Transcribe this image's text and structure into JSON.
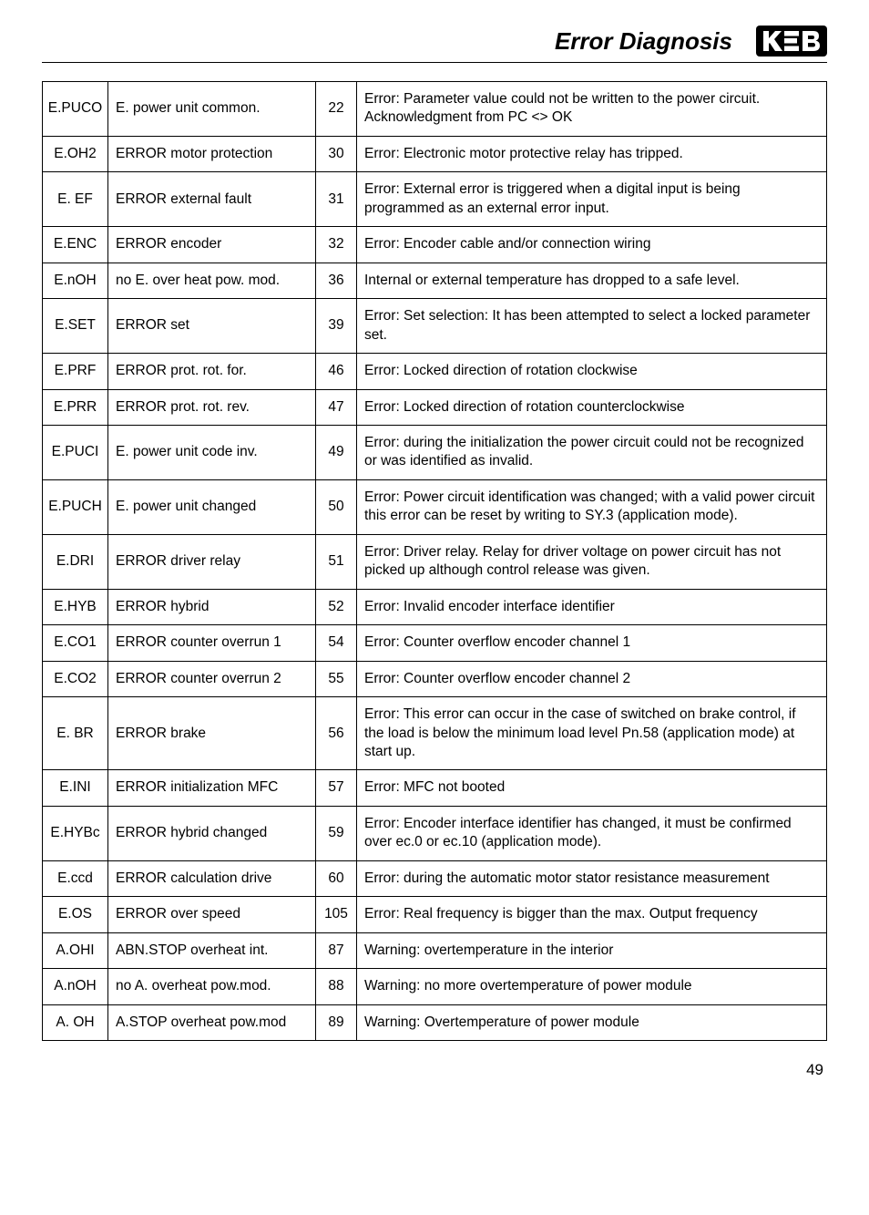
{
  "header": {
    "title": "Error Diagnosis",
    "logo_text": "KEB",
    "logo_bg": "#000000",
    "logo_fg": "#ffffff"
  },
  "page_number": "49",
  "rows": [
    {
      "code": "E.PUCO",
      "name": "E. power unit common.",
      "num": "22",
      "desc": "Error: Parameter value could not be written to the power circuit. Acknowledgment from PC <> OK"
    },
    {
      "code": "E.OH2",
      "name": "ERROR motor protection",
      "num": "30",
      "desc": "Error: Electronic motor protective relay has tripped."
    },
    {
      "code": "E. EF",
      "name": "ERROR external fault",
      "num": "31",
      "desc": "Error: External error is triggered when a digital input is being programmed as an external error input."
    },
    {
      "code": "E.ENC",
      "name": "ERROR encoder",
      "num": "32",
      "desc": "Error: Encoder cable and/or connection wiring"
    },
    {
      "code": "E.nOH",
      "name": "no E. over heat pow. mod.",
      "num": "36",
      "desc": "Internal or external  temperature has dropped to a safe level."
    },
    {
      "code": "E.SET",
      "name": "ERROR set",
      "num": "39",
      "desc": "Error: Set selection: It has been attempted to select a locked parameter set."
    },
    {
      "code": "E.PRF",
      "name": "ERROR prot. rot. for.",
      "num": "46",
      "desc": "Error: Locked direction of rotation clockwise"
    },
    {
      "code": "E.PRR",
      "name": "ERROR prot. rot. rev.",
      "num": "47",
      "desc": "Error: Locked direction of rotation counterclockwise"
    },
    {
      "code": "E.PUCI",
      "name": "E. power unit code inv.",
      "num": "49",
      "desc": "Error: during the initialization the power circuit could not be recognized or was identified as invalid."
    },
    {
      "code": "E.PUCH",
      "name": "E. power unit changed",
      "num": "50",
      "desc": "Error: Power circuit identification was changed; with a valid power circuit this error can be reset by writing to SY.3 (application mode)."
    },
    {
      "code": "E.DRI",
      "name": "ERROR driver relay",
      "num": "51",
      "desc": "Error: Driver relay. Relay for driver voltage on power circuit has not picked up although control release was given."
    },
    {
      "code": "E.HYB",
      "name": "ERROR hybrid",
      "num": "52",
      "desc": "Error: Invalid encoder interface identifier"
    },
    {
      "code": "E.CO1",
      "name": "ERROR counter overrun 1",
      "num": "54",
      "desc": "Error: Counter overflow encoder channel 1"
    },
    {
      "code": "E.CO2",
      "name": "ERROR counter overrun 2",
      "num": "55",
      "desc": "Error: Counter overflow encoder channel  2"
    },
    {
      "code": "E. BR",
      "name": "ERROR brake",
      "num": "56",
      "desc": "Error: This error can occur in the case of switched on brake control, if the load is below the minimum load level Pn.58 (application mode) at start up."
    },
    {
      "code": "E.INI",
      "name": "ERROR initialization MFC",
      "num": "57",
      "desc": "Error: MFC not booted"
    },
    {
      "code": "E.HYBc",
      "name": "ERROR hybrid changed",
      "num": "59",
      "desc": "Error: Encoder interface identifier has changed, it must be confirmed over ec.0 or ec.10 (application mode)."
    },
    {
      "code": "E.ccd",
      "name": "ERROR calculation drive",
      "num": "60",
      "desc": "Error: during the automatic motor stator resistance measurement"
    },
    {
      "code": "E.OS",
      "name": "ERROR over speed",
      "num": "105",
      "desc": "Error: Real frequency is bigger than the max. Output frequency"
    },
    {
      "code": "A.OHI",
      "name": "ABN.STOP overheat int.",
      "num": "87",
      "desc": "Warning: overtemperature in the interior"
    },
    {
      "code": "A.nOH",
      "name": "no A. overheat pow.mod.",
      "num": "88",
      "desc": "Warning: no more overtemperature of power module"
    },
    {
      "code": "A. OH",
      "name": "A.STOP overheat pow.mod",
      "num": "89",
      "desc": "Warning: Overtemperature of power module"
    }
  ]
}
